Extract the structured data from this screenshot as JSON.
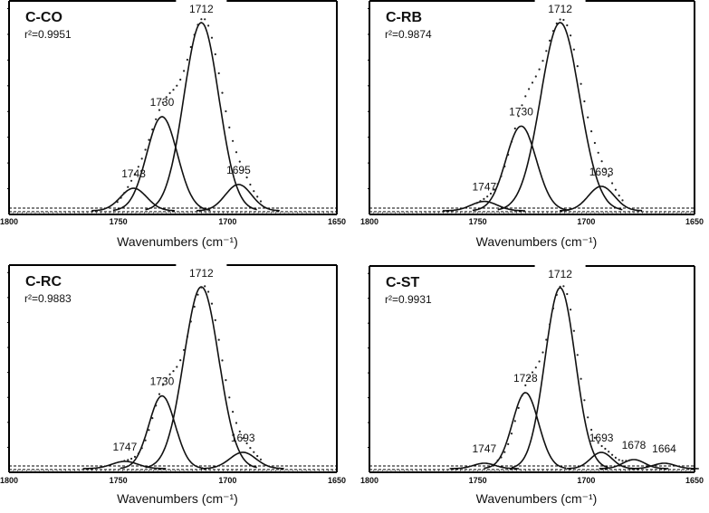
{
  "figure": {
    "layout": "2x2 grid of FTIR carbonyl-region deconvolution panels"
  },
  "chart_data": [
    {
      "type": "line",
      "panel": "top-left",
      "title": "C-CO",
      "r2_label": "r²=0.9951",
      "r2": 0.9951,
      "xlabel": "Wavenumbers (cm⁻¹)",
      "xlim": [
        1800,
        1650
      ],
      "x_reversed": true,
      "x_ticks": [
        1800,
        1750,
        1700,
        1650
      ],
      "ylabel": "",
      "grid": false,
      "baseline": 0.03,
      "peaks": [
        {
          "label": "1743",
          "center": 1743,
          "height": 0.12,
          "width": 6
        },
        {
          "label": "1730",
          "center": 1730,
          "height": 0.5,
          "width": 7
        },
        {
          "label": "1712",
          "center": 1712,
          "height": 1.0,
          "width": 8
        },
        {
          "label": "1695",
          "center": 1695,
          "height": 0.14,
          "width": 6
        }
      ]
    },
    {
      "type": "line",
      "panel": "top-right",
      "title": "C-RB",
      "r2_label": "r²=0.9874",
      "r2": 0.9874,
      "xlabel": "Wavenumbers (cm⁻¹)",
      "xlim": [
        1800,
        1650
      ],
      "x_reversed": true,
      "x_ticks": [
        1800,
        1750,
        1700,
        1650
      ],
      "ylabel": "",
      "grid": false,
      "baseline": 0.03,
      "peaks": [
        {
          "label": "1747",
          "center": 1747,
          "height": 0.05,
          "width": 6
        },
        {
          "label": "1730",
          "center": 1730,
          "height": 0.45,
          "width": 7
        },
        {
          "label": "1712",
          "center": 1712,
          "height": 1.0,
          "width": 9
        },
        {
          "label": "1693",
          "center": 1693,
          "height": 0.13,
          "width": 6
        }
      ]
    },
    {
      "type": "line",
      "panel": "bottom-left",
      "title": "C-RC",
      "r2_label": "r²=0.9883",
      "r2": 0.9883,
      "xlabel": "Wavenumbers (cm⁻¹)",
      "xlim": [
        1800,
        1650
      ],
      "x_reversed": true,
      "x_ticks": [
        1800,
        1750,
        1700,
        1650
      ],
      "ylabel": "",
      "grid": false,
      "baseline": 0.03,
      "peaks": [
        {
          "label": "1747",
          "center": 1747,
          "height": 0.04,
          "width": 6
        },
        {
          "label": "1730",
          "center": 1730,
          "height": 0.4,
          "width": 6
        },
        {
          "label": "1712",
          "center": 1712,
          "height": 1.0,
          "width": 8
        },
        {
          "label": "1693",
          "center": 1693,
          "height": 0.09,
          "width": 6
        }
      ]
    },
    {
      "type": "line",
      "panel": "bottom-right",
      "title": "C-ST",
      "r2_label": "r²=0.9931",
      "r2": 0.9931,
      "xlabel": "Wavenumbers (cm⁻¹)",
      "xlim": [
        1800,
        1650
      ],
      "x_reversed": true,
      "x_ticks": [
        1800,
        1750,
        1700,
        1650
      ],
      "ylabel": "",
      "grid": false,
      "baseline": 0.03,
      "peaks": [
        {
          "label": "1747",
          "center": 1747,
          "height": 0.03,
          "width": 5
        },
        {
          "label": "1728",
          "center": 1728,
          "height": 0.42,
          "width": 6
        },
        {
          "label": "1712",
          "center": 1712,
          "height": 1.0,
          "width": 7
        },
        {
          "label": "1693",
          "center": 1693,
          "height": 0.09,
          "width": 5
        },
        {
          "label": "1678",
          "center": 1678,
          "height": 0.05,
          "width": 5
        },
        {
          "label": "1664",
          "center": 1664,
          "height": 0.03,
          "width": 5
        }
      ]
    }
  ],
  "panels": [
    {
      "title": "C-CO",
      "r2": "r²=0.9951",
      "xlabel": "Wavenumbers (cm⁻¹)",
      "ticks": [
        "1800",
        "1750",
        "1700",
        "1650"
      ],
      "peak_labels": [
        "1743",
        "1730",
        "1712",
        "1695"
      ]
    },
    {
      "title": "C-RB",
      "r2": "r²=0.9874",
      "xlabel": "Wavenumbers (cm⁻¹)",
      "ticks": [
        "1800",
        "1750",
        "1700",
        "1650"
      ],
      "peak_labels": [
        "1747",
        "1730",
        "1712",
        "1693"
      ]
    },
    {
      "title": "C-RC",
      "r2": "r²=0.9883",
      "xlabel": "Wavenumbers (cm⁻¹)",
      "ticks": [
        "1800",
        "1750",
        "1700",
        "1650"
      ],
      "peak_labels": [
        "1747",
        "1730",
        "1712",
        "1693"
      ]
    },
    {
      "title": "C-ST",
      "r2": "r²=0.9931",
      "xlabel": "Wavenumbers (cm⁻¹)",
      "ticks": [
        "1800",
        "1750",
        "1700",
        "1650"
      ],
      "peak_labels": [
        "1747",
        "1728",
        "1712",
        "1693",
        "1678",
        "1664"
      ]
    }
  ],
  "style": {
    "line_color": "#111111",
    "frame_color": "#000000",
    "background": "#ffffff"
  }
}
